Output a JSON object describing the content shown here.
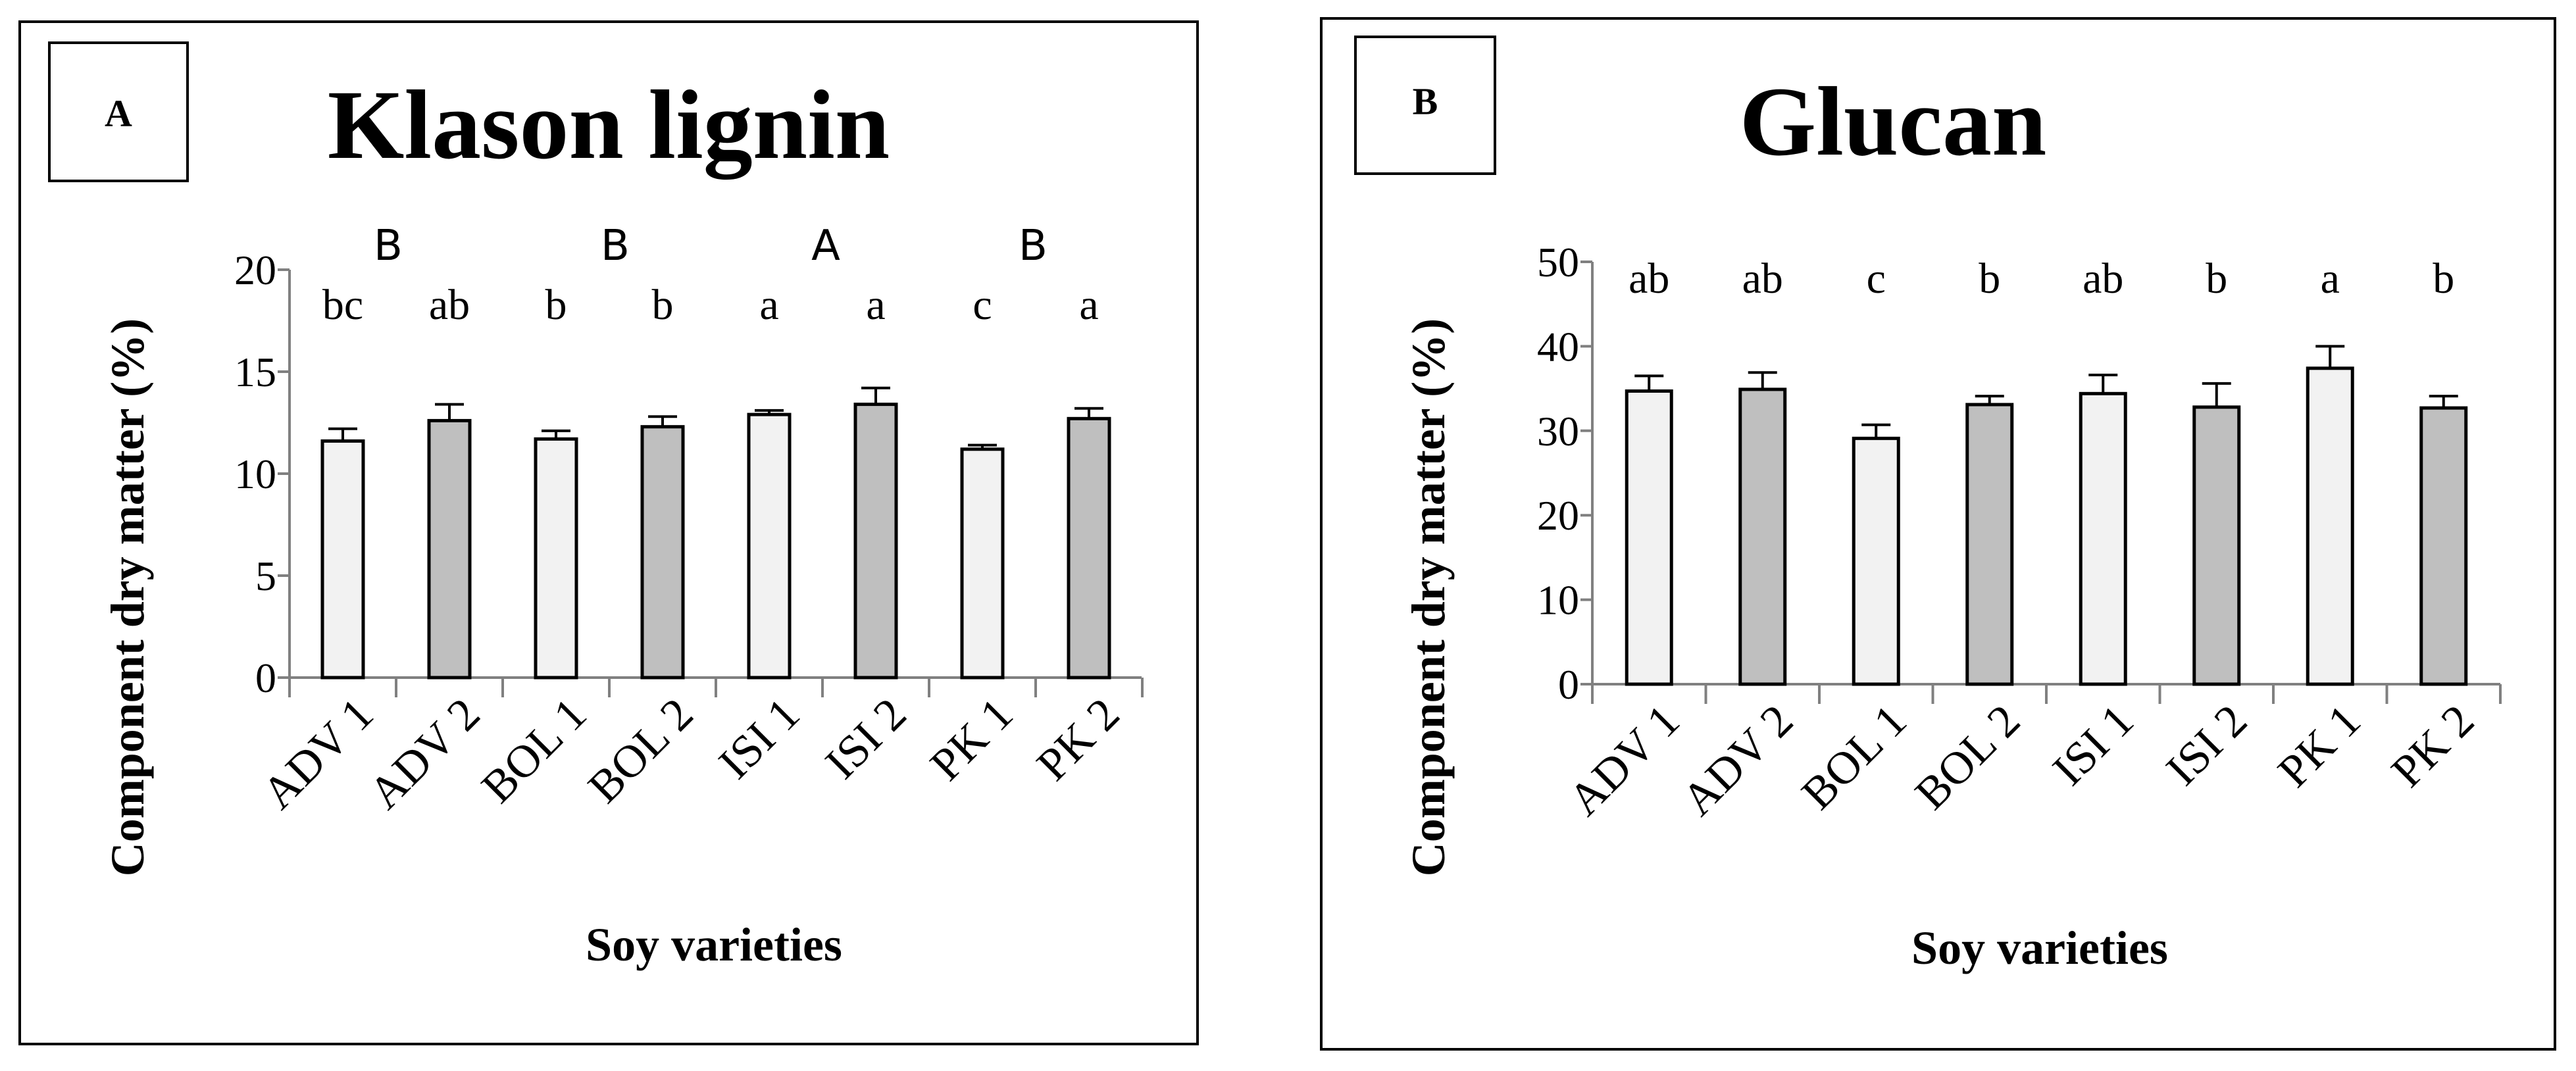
{
  "colors": {
    "light_bar": "#f2f2f2",
    "dark_bar": "#bfbfbf",
    "ink": "#000000",
    "axis": "#808080"
  },
  "chart_data": [
    {
      "type": "bar",
      "panel_label": "A",
      "title": "Klason lignin",
      "xlabel": "Soy varieties",
      "ylabel": "Component dry matter (%)",
      "ylim": [
        0,
        20
      ],
      "yticks": [
        "0",
        "5",
        "10",
        "15",
        "20"
      ],
      "categories": [
        "ADV 1",
        "ADV 2",
        "BOL 1",
        "BOL 2",
        "ISI 1",
        "ISI 2",
        "PK 1",
        "PK 2"
      ],
      "values": [
        11.6,
        12.6,
        11.7,
        12.3,
        12.9,
        13.4,
        11.2,
        12.7
      ],
      "errors": [
        0.6,
        0.8,
        0.4,
        0.5,
        0.2,
        0.8,
        0.2,
        0.5
      ],
      "shading": [
        "light",
        "dark",
        "light",
        "dark",
        "light",
        "dark",
        "light",
        "dark"
      ],
      "letters": [
        "bc",
        "ab",
        "b",
        "b",
        "a",
        "a",
        "c",
        "a"
      ],
      "group_letters": [
        "B",
        "B",
        "A",
        "B"
      ]
    },
    {
      "type": "bar",
      "panel_label": "B",
      "title": "Glucan",
      "xlabel": "Soy varieties",
      "ylabel": "Component dry matter (%)",
      "ylim": [
        0,
        50
      ],
      "yticks": [
        "0",
        "10",
        "20",
        "30",
        "40",
        "50"
      ],
      "categories": [
        "ADV 1",
        "ADV 2",
        "BOL 1",
        "BOL 2",
        "ISI 1",
        "ISI 2",
        "PK 1",
        "PK 2"
      ],
      "values": [
        34.7,
        34.9,
        29.1,
        33.1,
        34.4,
        32.8,
        37.4,
        32.7
      ],
      "errors": [
        1.8,
        2.0,
        1.6,
        1.0,
        2.2,
        2.8,
        2.6,
        1.4
      ],
      "shading": [
        "light",
        "dark",
        "light",
        "dark",
        "light",
        "dark",
        "light",
        "dark"
      ],
      "letters": [
        "ab",
        "ab",
        "c",
        "b",
        "ab",
        "b",
        "a",
        "b"
      ]
    }
  ]
}
